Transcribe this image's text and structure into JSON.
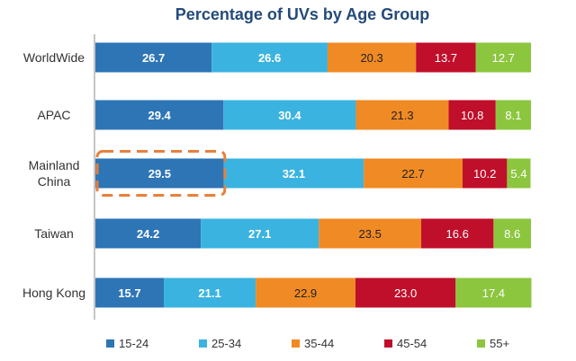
{
  "chart_data": {
    "type": "bar",
    "orientation": "horizontal",
    "stacked": true,
    "title": "Percentage of UVs by Age Group",
    "categories": [
      "WorldWide",
      "APAC",
      "Mainland China",
      "Taiwan",
      "Hong Kong"
    ],
    "category_label_lines": [
      [
        "WorldWide"
      ],
      [
        "APAC"
      ],
      [
        "Mainland",
        "China"
      ],
      [
        "Taiwan"
      ],
      [
        "Hong Kong"
      ]
    ],
    "series": [
      {
        "name": "15-24",
        "color": "#2E75B6",
        "label_bold": true,
        "label_color": "#ffffff",
        "values": [
          26.7,
          29.4,
          29.5,
          24.2,
          15.7
        ]
      },
      {
        "name": "25-34",
        "color": "#3BB3E0",
        "label_bold": true,
        "label_color": "#ffffff",
        "values": [
          26.6,
          30.4,
          32.1,
          27.1,
          21.1
        ]
      },
      {
        "name": "35-44",
        "color": "#F08A24",
        "label_bold": false,
        "label_color": "#222222",
        "values": [
          20.3,
          21.3,
          22.7,
          23.5,
          22.9
        ]
      },
      {
        "name": "45-54",
        "color": "#C00F2A",
        "label_bold": false,
        "label_color": "#ffffff",
        "values": [
          13.7,
          10.8,
          10.2,
          16.6,
          23.0
        ]
      },
      {
        "name": "55+",
        "color": "#8CC63F",
        "label_bold": false,
        "label_color": "#ffffff",
        "values": [
          12.7,
          8.1,
          5.4,
          8.6,
          17.4
        ]
      }
    ],
    "xlim": [
      0,
      100
    ],
    "grid": false,
    "legend_position": "bottom",
    "highlight": {
      "category": "Mainland China",
      "series": "15-24",
      "style": "dashed",
      "color": "#E8803A"
    }
  }
}
